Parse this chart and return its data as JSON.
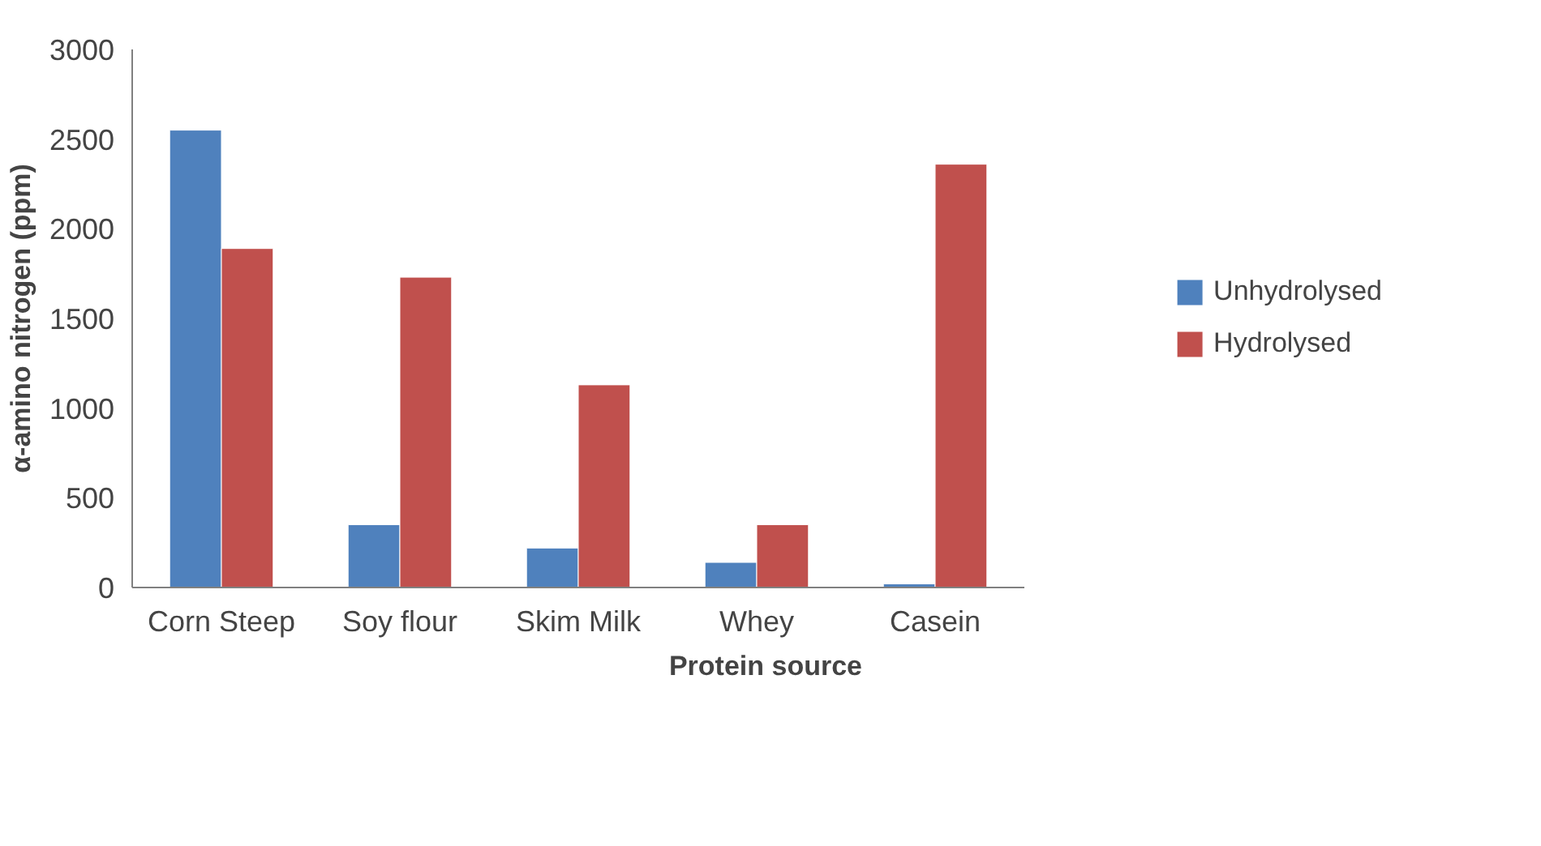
{
  "chart_data": {
    "type": "bar",
    "xlabel": "Protein source",
    "ylabel": "α-amino nitrogen (ppm)",
    "categories": [
      "Corn Steep",
      "Soy flour",
      "Skim Milk",
      "Whey",
      "Casein"
    ],
    "series": [
      {
        "name": "Unhydrolysed",
        "color": "#4f81bd",
        "values": [
          2550,
          350,
          220,
          140,
          20
        ]
      },
      {
        "name": "Hydrolysed",
        "color": "#c0504d",
        "values": [
          1890,
          1730,
          1130,
          350,
          2360
        ]
      }
    ],
    "ylim": [
      0,
      3000
    ],
    "yticks": [
      0,
      500,
      1000,
      1500,
      2000,
      2500,
      3000
    ],
    "grid": false,
    "legend": "right"
  }
}
